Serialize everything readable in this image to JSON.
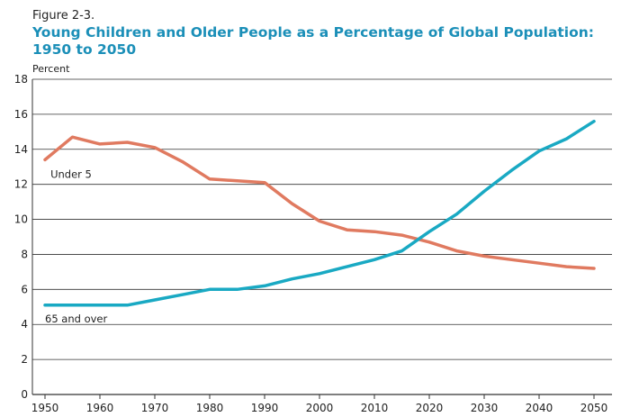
{
  "figure_label": "Figure 2-3.",
  "title_line1": "Young Children and Older People as a Percentage of Global Population:",
  "title_line2": "1950 to 2050",
  "chart_data": {
    "type": "line",
    "title": "Young Children and Older People as a Percentage of Global Population: 1950 to 2050",
    "ylabel": "Percent",
    "xlabel": "",
    "xlim": [
      1950,
      2050
    ],
    "ylim": [
      0,
      18
    ],
    "x_ticks": [
      1950,
      1960,
      1970,
      1980,
      1990,
      2000,
      2010,
      2020,
      2030,
      2040,
      2050
    ],
    "y_ticks": [
      0,
      2,
      4,
      6,
      8,
      10,
      12,
      14,
      16,
      18
    ],
    "grid": "horizontal",
    "x": [
      1950,
      1955,
      1960,
      1965,
      1970,
      1975,
      1980,
      1985,
      1990,
      1995,
      2000,
      2005,
      2010,
      2015,
      2020,
      2025,
      2030,
      2035,
      2040,
      2045,
      2050
    ],
    "series": [
      {
        "name": "Under 5",
        "color": "#e07a60",
        "values": [
          13.4,
          14.7,
          14.3,
          14.4,
          14.1,
          13.3,
          12.3,
          12.2,
          12.1,
          10.9,
          9.9,
          9.4,
          9.3,
          9.1,
          8.7,
          8.2,
          7.9,
          7.7,
          7.5,
          7.3,
          7.2
        ]
      },
      {
        "name": "65 and over",
        "color": "#19a9c3",
        "values": [
          5.1,
          5.1,
          5.1,
          5.1,
          5.4,
          5.7,
          6.0,
          6.0,
          6.2,
          6.6,
          6.9,
          7.3,
          7.7,
          8.2,
          9.3,
          10.3,
          11.6,
          12.8,
          13.9,
          14.6,
          15.6
        ]
      }
    ]
  }
}
